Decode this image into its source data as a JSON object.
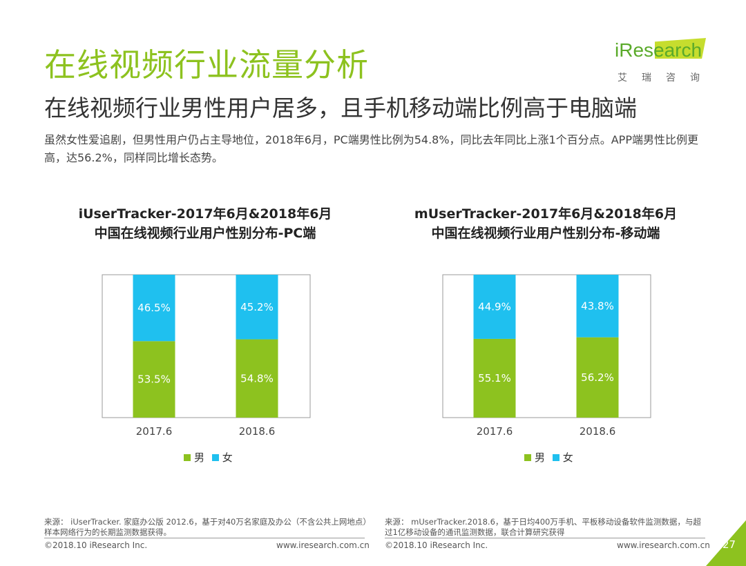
{
  "header": {
    "title": "在线视频行业流量分析",
    "subtitle": "在线视频行业男性用户居多，且手机移动端比例高于电脑端",
    "description": "虽然女性爱追剧，但男性用户仍占主导地位，2018年6月，PC端男性比例为54.8%，同比去年同比上涨1个百分点。APP端男性比例更高，达56.2%，同样同比增长态势。"
  },
  "logo": {
    "word": "iResearch",
    "cn": "艾瑞咨询"
  },
  "colors": {
    "male": "#8dc21f",
    "female": "#1fc0ef",
    "title": "#8dc21f"
  },
  "chart_data": [
    {
      "type": "bar",
      "stacked": true,
      "title_line1": "iUserTracker-2017年6月&2018年6月",
      "title_line2": "中国在线视频行业用户性别分布-PC端",
      "categories": [
        "2017.6",
        "2018.6"
      ],
      "series": [
        {
          "name": "男",
          "values": [
            53.5,
            54.8
          ],
          "labels": [
            "53.5%",
            "54.8%"
          ]
        },
        {
          "name": "女",
          "values": [
            46.5,
            45.2
          ],
          "labels": [
            "46.5%",
            "45.2%"
          ]
        }
      ],
      "ylim": [
        0,
        100
      ],
      "legend": [
        "男",
        "女"
      ]
    },
    {
      "type": "bar",
      "stacked": true,
      "title_line1": "mUserTracker-2017年6月&2018年6月",
      "title_line2": "中国在线视频行业用户性别分布-移动端",
      "categories": [
        "2017.6",
        "2018.6"
      ],
      "series": [
        {
          "name": "男",
          "values": [
            55.1,
            56.2
          ],
          "labels": [
            "55.1%",
            "56.2%"
          ]
        },
        {
          "name": "女",
          "values": [
            44.9,
            43.8
          ],
          "labels": [
            "44.9%",
            "43.8%"
          ]
        }
      ],
      "ylim": [
        0,
        100
      ],
      "legend": [
        "男",
        "女"
      ]
    }
  ],
  "sources": {
    "left": "来源： iUserTracker. 家庭办公版 2012.6，基于对40万名家庭及办公（不含公共上网地点）样本网络行为的长期监测数据获得。",
    "right": "来源： mUserTracker.2018.6，基于日均400万手机、平板移动设备软件监测数据，与超过1亿移动设备的通讯监测数据，联合计算研究获得"
  },
  "footer": {
    "copyright_left": "©2018.10 iResearch Inc.",
    "url_left": "www.iresearch.com.cn",
    "copyright_right": "©2018.10 iResearch Inc.",
    "url_right": "www.iresearch.com.cn",
    "page_number": "27"
  }
}
